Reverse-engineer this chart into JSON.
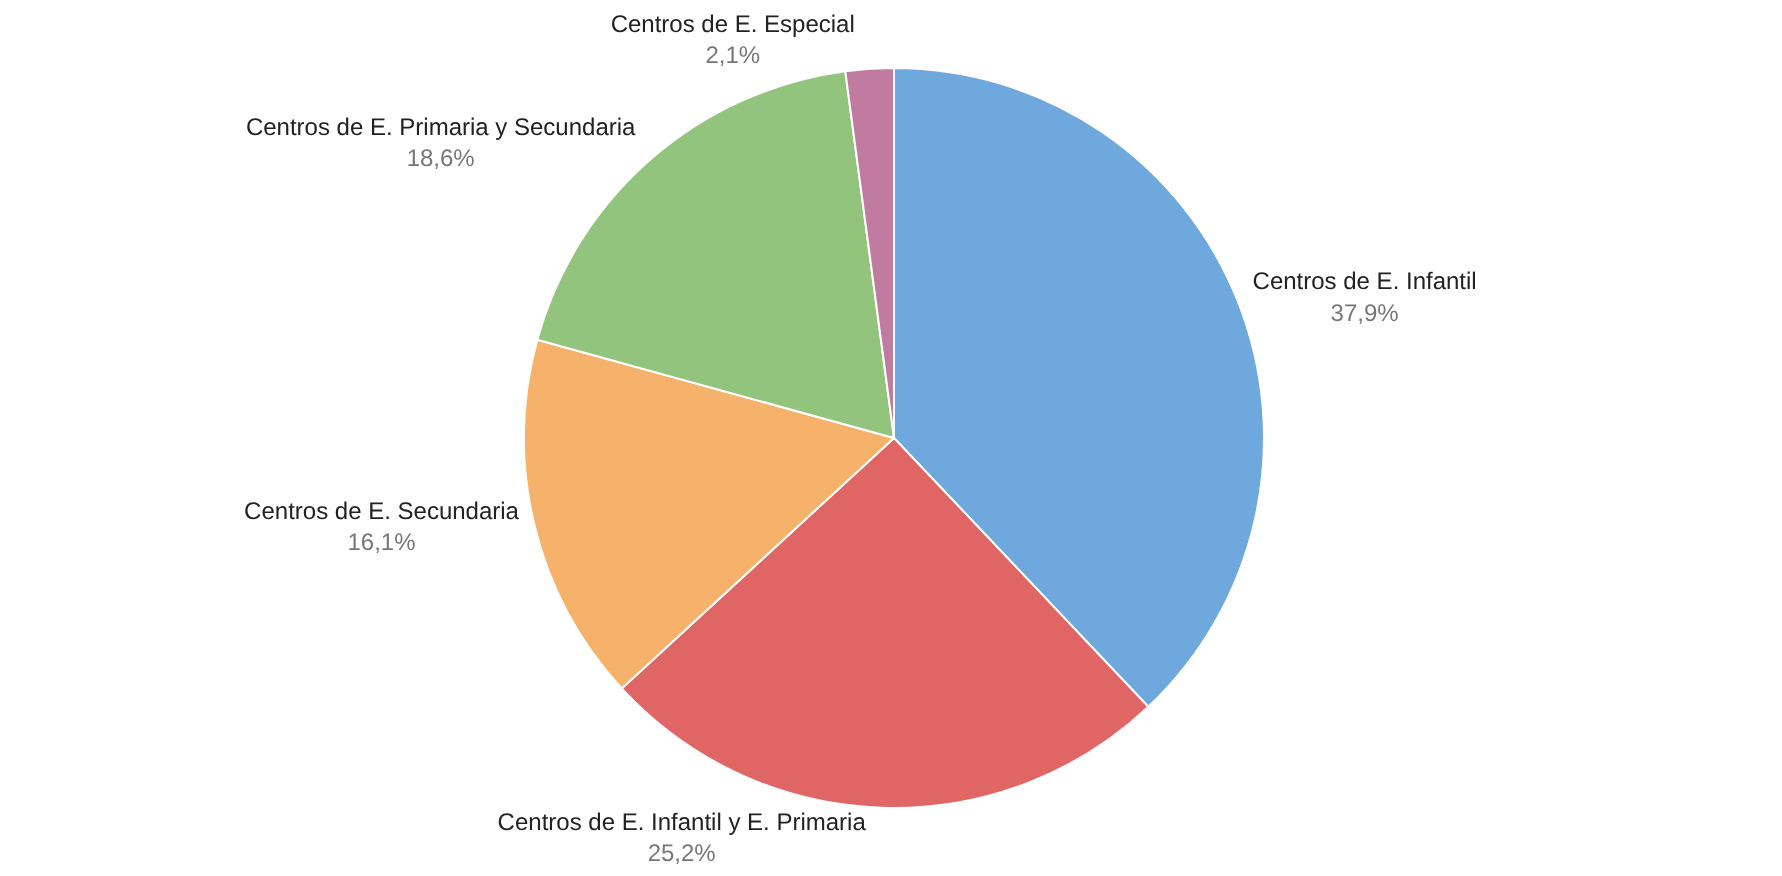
{
  "chart_data": {
    "type": "pie",
    "categories": [
      "Centros de E. Infantil",
      "Centros de E. Infantil y E. Primaria",
      "Centros de E. Secundaria",
      "Centros de E. Primaria y Secundaria",
      "Centros de E. Especial"
    ],
    "values": [
      37.9,
      25.2,
      16.1,
      18.6,
      2.1
    ],
    "value_labels": [
      "37,9%",
      "25,2%",
      "16,1%",
      "18,6%",
      "2,1%"
    ],
    "colors": [
      "#6fa8dc",
      "#e06666",
      "#f6b26b",
      "#93c47d",
      "#c27ba0"
    ],
    "legend": false
  }
}
